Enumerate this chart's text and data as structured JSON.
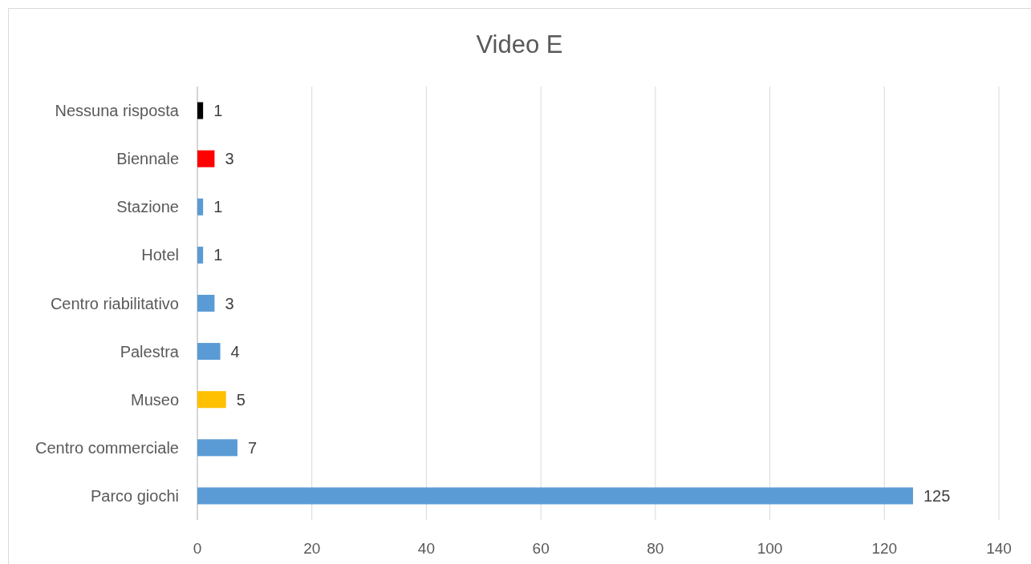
{
  "chart_data": {
    "type": "bar",
    "orientation": "horizontal",
    "title": "Video E",
    "categories": [
      "Nessuna risposta",
      "Biennale",
      "Stazione",
      "Hotel",
      "Centro riabilitativo",
      "Palestra",
      "Museo",
      "Centro commerciale",
      "Parco giochi"
    ],
    "values": [
      1,
      3,
      1,
      1,
      3,
      4,
      5,
      7,
      125
    ],
    "colors": [
      "#000000",
      "#ff0000",
      "#5b9bd5",
      "#5b9bd5",
      "#5b9bd5",
      "#5b9bd5",
      "#ffc000",
      "#5b9bd5",
      "#5b9bd5"
    ],
    "xlim": [
      0,
      140
    ],
    "xticks": [
      0,
      20,
      40,
      60,
      80,
      100,
      120,
      140
    ],
    "grid": "x",
    "data_labels": true
  }
}
